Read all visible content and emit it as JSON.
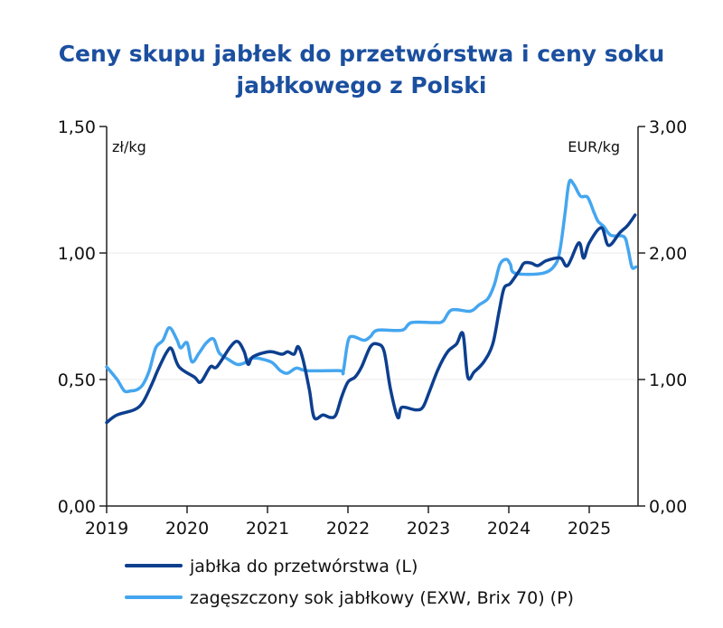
{
  "chart_data": {
    "type": "line",
    "title": "Ceny skupu jabłek do przetwórstwa i ceny soku jabłkowego z Polski",
    "title_lines": [
      "Ceny skupu jabłek do przetwórstwa i ceny soku",
      "jabłkowego z Polski"
    ],
    "ylabel_left": "zł/kg",
    "ylabel_right": "EUR/kg",
    "ylim_left": [
      0,
      1.5
    ],
    "ylim_right": [
      0,
      3.0
    ],
    "yticks_left": [
      "0,00",
      "0,50",
      "1,00",
      "1,50"
    ],
    "yticks_left_values": [
      0,
      0.5,
      1.0,
      1.5
    ],
    "yticks_right": [
      "0,00",
      "1,00",
      "2,00",
      "3,00"
    ],
    "yticks_right_values": [
      0,
      1.0,
      2.0,
      3.0
    ],
    "xlim": [
      2019,
      2025.65
    ],
    "xticks": [
      "2019",
      "2020",
      "2021",
      "2022",
      "2023",
      "2024",
      "2025"
    ],
    "xticks_values": [
      2019,
      2020,
      2021,
      2022,
      2023,
      2024,
      2025
    ],
    "grid": "horizontal",
    "legend_placement": "bottom",
    "series": [
      {
        "name": "jabłka do przetwórstwa (L)",
        "axis": "left",
        "color": "#0d3f8f",
        "x": [
          2019.0,
          2019.13,
          2019.34,
          2019.45,
          2019.56,
          2019.64,
          2019.75,
          2019.81,
          2019.9,
          2020.09,
          2020.17,
          2020.29,
          2020.37,
          2020.54,
          2020.63,
          2020.71,
          2020.76,
          2020.82,
          2021.02,
          2021.18,
          2021.25,
          2021.33,
          2021.38,
          2021.44,
          2021.52,
          2021.58,
          2021.69,
          2021.78,
          2021.85,
          2021.92,
          2022.0,
          2022.09,
          2022.17,
          2022.28,
          2022.37,
          2022.45,
          2022.53,
          2022.62,
          2022.67,
          2022.84,
          2022.93,
          2023.01,
          2023.12,
          2023.24,
          2023.35,
          2023.43,
          2023.49,
          2023.57,
          2023.69,
          2023.8,
          2023.88,
          2023.94,
          2024.02,
          2024.13,
          2024.19,
          2024.28,
          2024.36,
          2024.47,
          2024.64,
          2024.73,
          2024.87,
          2024.93,
          2025.0,
          2025.15,
          2025.24,
          2025.38,
          2025.48,
          2025.57
        ],
        "y": [
          0.33,
          0.36,
          0.38,
          0.41,
          0.48,
          0.54,
          0.61,
          0.62,
          0.55,
          0.51,
          0.49,
          0.55,
          0.55,
          0.63,
          0.65,
          0.61,
          0.56,
          0.59,
          0.61,
          0.6,
          0.61,
          0.6,
          0.63,
          0.58,
          0.46,
          0.35,
          0.36,
          0.35,
          0.36,
          0.43,
          0.49,
          0.51,
          0.55,
          0.63,
          0.64,
          0.61,
          0.46,
          0.35,
          0.39,
          0.38,
          0.39,
          0.45,
          0.54,
          0.61,
          0.64,
          0.68,
          0.51,
          0.53,
          0.57,
          0.64,
          0.77,
          0.86,
          0.88,
          0.93,
          0.96,
          0.96,
          0.95,
          0.97,
          0.98,
          0.95,
          1.04,
          0.98,
          1.04,
          1.1,
          1.03,
          1.08,
          1.11,
          1.15
        ]
      },
      {
        "name": "zagęszczony sok jabłkowy (EXW, Brix 70) (P)",
        "axis": "right",
        "color": "#45a6ef",
        "x": [
          2019.0,
          2019.13,
          2019.22,
          2019.3,
          2019.38,
          2019.45,
          2019.53,
          2019.61,
          2019.7,
          2019.78,
          2019.87,
          2019.92,
          2020.0,
          2020.06,
          2020.15,
          2020.24,
          2020.33,
          2020.4,
          2020.51,
          2020.62,
          2020.71,
          2020.82,
          2021.04,
          2021.16,
          2021.25,
          2021.36,
          2021.49,
          2021.9,
          2021.94,
          2022.0,
          2022.06,
          2022.2,
          2022.28,
          2022.37,
          2022.67,
          2022.79,
          2023.07,
          2023.18,
          2023.29,
          2023.52,
          2023.63,
          2023.74,
          2023.82,
          2023.89,
          2023.97,
          2024.02,
          2024.08,
          2024.42,
          2024.58,
          2024.64,
          2024.7,
          2024.75,
          2024.81,
          2024.89,
          2024.98,
          2025.06,
          2025.11,
          2025.18,
          2025.27,
          2025.43,
          2025.48,
          2025.53,
          2025.58
        ],
        "y": [
          1.1,
          1.0,
          0.91,
          0.91,
          0.92,
          0.96,
          1.07,
          1.25,
          1.31,
          1.41,
          1.32,
          1.25,
          1.29,
          1.14,
          1.21,
          1.29,
          1.32,
          1.21,
          1.16,
          1.12,
          1.13,
          1.17,
          1.14,
          1.07,
          1.05,
          1.09,
          1.07,
          1.07,
          1.06,
          1.3,
          1.34,
          1.31,
          1.34,
          1.39,
          1.39,
          1.45,
          1.45,
          1.46,
          1.55,
          1.54,
          1.59,
          1.64,
          1.75,
          1.91,
          1.95,
          1.91,
          1.84,
          1.84,
          1.91,
          2.04,
          2.32,
          2.56,
          2.54,
          2.45,
          2.44,
          2.32,
          2.25,
          2.21,
          2.14,
          2.13,
          2.04,
          1.89,
          1.89
        ]
      }
    ]
  }
}
